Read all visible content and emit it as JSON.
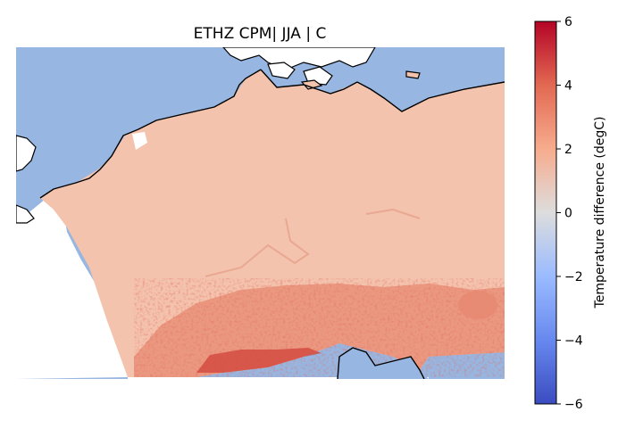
{
  "figure": {
    "title": "ETHZ CPM| JJA | C"
  },
  "colorbar": {
    "label": "Temperature difference (degC)",
    "ticks": [
      "6",
      "4",
      "2",
      "0",
      "−2",
      "−4",
      "−6"
    ],
    "tick_values": [
      6,
      4,
      2,
      0,
      -2,
      -4,
      -6
    ],
    "range": [
      -6,
      6
    ],
    "colormap": "coolwarm",
    "colors": [
      "#3b4cc0",
      "#7b9ff9",
      "#c0d4f5",
      "#dddddd",
      "#f2cbb7",
      "#ee8468",
      "#b40426"
    ]
  },
  "map": {
    "sea_color": "#97b6e1",
    "field_base_color": "#f4c3ad",
    "alpine_band_color": "#e88a72",
    "hotspot_color": "#d2473d",
    "coastline_color": "#000000"
  }
}
